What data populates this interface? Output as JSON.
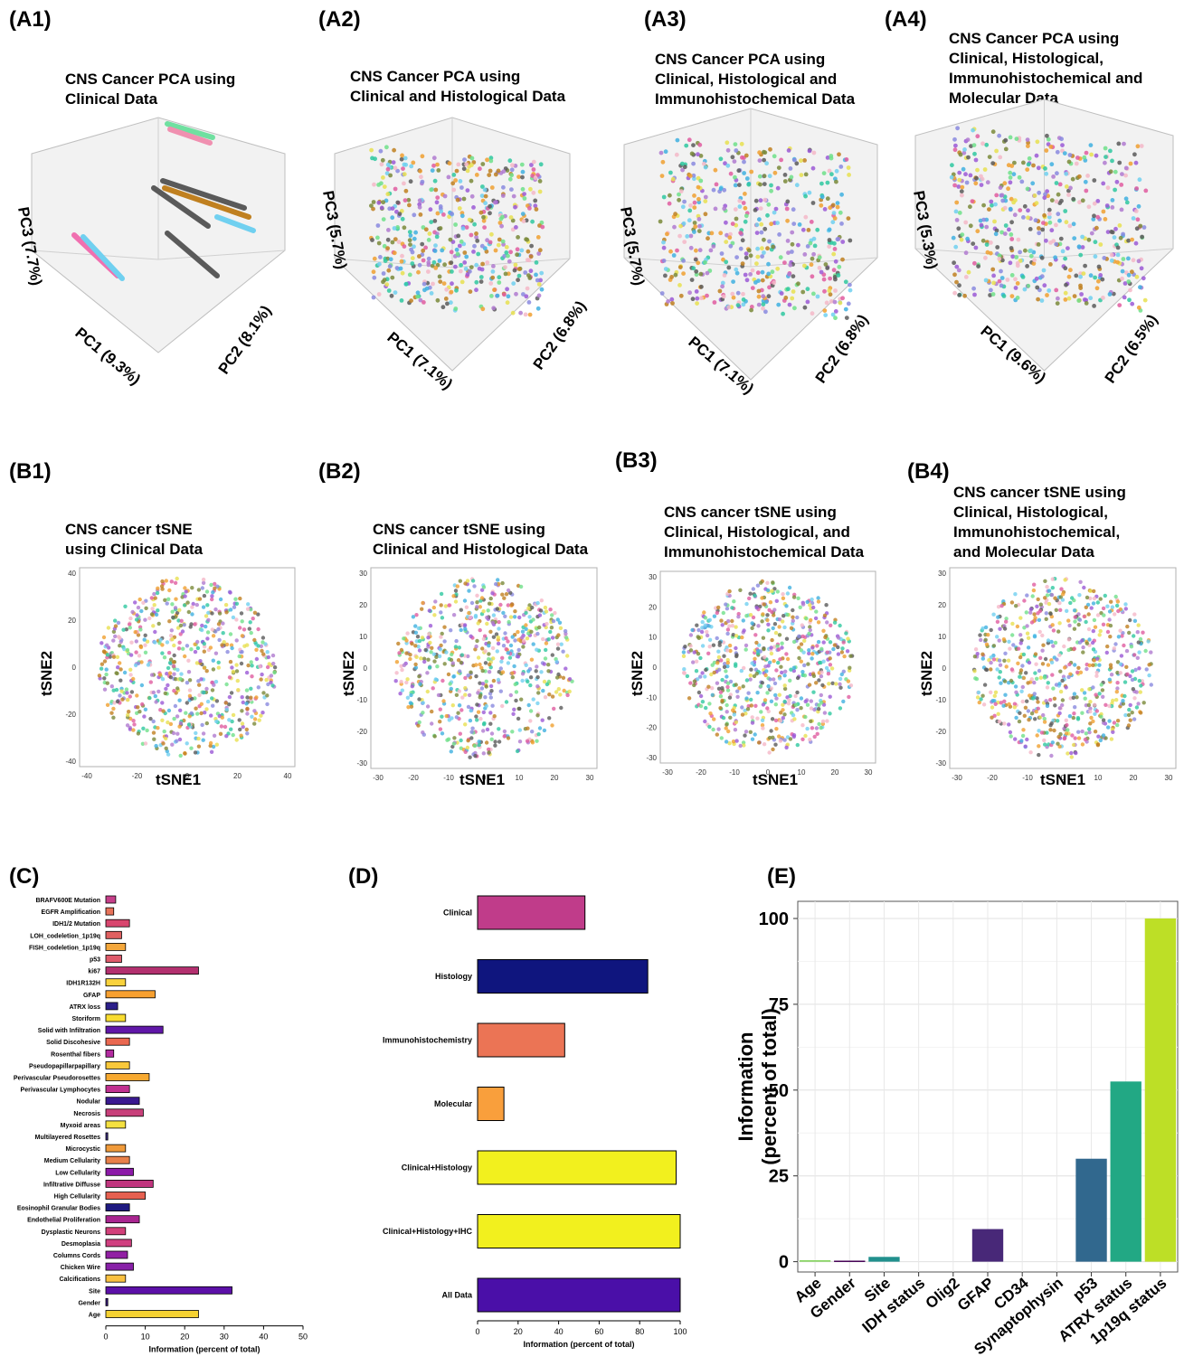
{
  "panels": {
    "A1": {
      "label": "(A1)",
      "title": [
        "CNS Cancer PCA using",
        "Clinical Data"
      ],
      "axes": [
        "PC1 (9.3%)",
        "PC2 (8.1%)",
        "PC3 (7.7%)"
      ]
    },
    "A2": {
      "label": "(A2)",
      "title": [
        "CNS Cancer PCA using",
        "Clinical and Histological Data"
      ],
      "axes": [
        "PC1 (7.1%)",
        "PC2 (6.8%)",
        "PC3 (5.7%)"
      ]
    },
    "A3": {
      "label": "(A3)",
      "title": [
        "CNS Cancer PCA using",
        "Clinical, Histological and",
        "Immunohistochemical Data"
      ],
      "axes": [
        "PC1 (7.1%)",
        "PC2 (6.8%)",
        "PC3 (5.7%)"
      ]
    },
    "A4": {
      "label": "(A4)",
      "title": [
        "CNS Cancer PCA using",
        "Clinical, Histological,",
        "Immunohistochemical and",
        "Molecular Data"
      ],
      "axes": [
        "PC1 (9.6%)",
        "PC2 (6.5%)",
        "PC3 (5.3%)"
      ]
    },
    "B1": {
      "label": "(B1)",
      "title": [
        "CNS cancer tSNE",
        "using Clinical Data"
      ],
      "xlabel": "tSNE1",
      "ylabel": "tSNE2",
      "xticks": [
        "-40",
        "-20",
        "0",
        "20",
        "40"
      ],
      "yticks": [
        "40",
        "20",
        "0",
        "-20",
        "-40"
      ]
    },
    "B2": {
      "label": "(B2)",
      "title": [
        "CNS cancer tSNE using",
        "Clinical and Histological Data"
      ],
      "xlabel": "tSNE1",
      "ylabel": "tSNE2",
      "xticks": [
        "-30",
        "-20",
        "-10",
        "0",
        "10",
        "20",
        "30"
      ],
      "yticks": [
        "30",
        "20",
        "10",
        "0",
        "-10",
        "-20",
        "-30"
      ]
    },
    "B3": {
      "label": "(B3)",
      "title": [
        "CNS cancer tSNE using",
        "Clinical, Histological, and",
        "Immunohistochemical Data"
      ],
      "xlabel": "tSNE1",
      "ylabel": "tSNE2",
      "xticks": [
        "-30",
        "-20",
        "-10",
        "0",
        "10",
        "20",
        "30"
      ],
      "yticks": [
        "30",
        "20",
        "10",
        "0",
        "-10",
        "-20",
        "-30"
      ]
    },
    "B4": {
      "label": "(B4)",
      "title": [
        "CNS cancer tSNE using",
        "Clinical, Histological,",
        "Immunohistochemical,",
        "and Molecular Data"
      ],
      "xlabel": "tSNE1",
      "ylabel": "tSNE2",
      "xticks": [
        "-30",
        "-20",
        "-10",
        "0",
        "10",
        "20",
        "30"
      ],
      "yticks": [
        "30",
        "20",
        "10",
        "0",
        "-10",
        "-20",
        "-30"
      ]
    },
    "C": {
      "label": "(C)"
    },
    "D": {
      "label": "(D)"
    },
    "E": {
      "label": "(E)"
    }
  },
  "chart_data": [
    {
      "panel": "C",
      "type": "bar",
      "orientation": "horizontal",
      "xlabel": "Information (percent of total)",
      "xlim": [
        0,
        50
      ],
      "xticks": [
        0,
        10,
        20,
        30,
        40,
        50
      ],
      "categories": [
        "BRAFV600E Mutation",
        "EGFR Amplification",
        "IDH1/2 Mutation",
        "LOH_codeletion_1p19q",
        "FISH_codeletion_1p19q",
        "p53",
        "ki67",
        "IDH1R132H",
        "GFAP",
        "ATRX loss",
        "Storiform",
        "Solid with Infiltration",
        "Solid Discohesive",
        "Rosenthal fibers",
        "Pseudopapillarpapillary",
        "Perivascular Pseudorosettes",
        "Perivascular Lymphocytes",
        "Nodular",
        "Necrosis",
        "Myxoid areas",
        "Multilayered Rosettes",
        "Microcystic",
        "Medium Cellularity",
        "Low Cellularity",
        "Infiltrative Diffusse",
        "High Cellularity",
        "Eosinophil Granular Bodies",
        "Endothelial Proliferation",
        "Dysplastic Neurons",
        "Desmoplasia",
        "Columns Cords",
        "Chicken Wire",
        "Calcifications",
        "Site",
        "Gender",
        "Age"
      ],
      "values": [
        2.5,
        2,
        6,
        4,
        5,
        4,
        23.5,
        5,
        12.5,
        3,
        5,
        14.5,
        6,
        2,
        6,
        11,
        6,
        8.5,
        9.5,
        5,
        0.5,
        5,
        6,
        7,
        12,
        10,
        6,
        8.5,
        5,
        6.5,
        5.5,
        7,
        5,
        32,
        0.5,
        23.5
      ],
      "colors": [
        "#c63f8a",
        "#e8735a",
        "#d8466e",
        "#e06060",
        "#f4a73b",
        "#de5a6a",
        "#b3306f",
        "#f9d23c",
        "#f7a030",
        "#2c1f8a",
        "#f8dc30",
        "#6017a8",
        "#ea6850",
        "#b32ba0",
        "#f9c83a",
        "#f7a930",
        "#c03090",
        "#3a1990",
        "#c8407a",
        "#f4e040",
        "#3b2a80",
        "#f09a3a",
        "#e8804a",
        "#8c1aa8",
        "#c0357e",
        "#e66050",
        "#1f1a80",
        "#a92590",
        "#d2407a",
        "#d04080",
        "#9220a4",
        "#8820a8",
        "#f9c040",
        "#5c10a8",
        "#3a1a80",
        "#f6d232"
      ]
    },
    {
      "panel": "D",
      "type": "bar",
      "orientation": "horizontal",
      "xlabel": "Information (percent of total)",
      "xlim": [
        0,
        100
      ],
      "xticks": [
        0,
        20,
        40,
        60,
        80,
        100
      ],
      "categories": [
        "Clinical",
        "Histology",
        "Immunohistochemistry",
        "Molecular",
        "Clinical+Histology",
        "Clinical+Histology+IHC",
        "All Data"
      ],
      "values": [
        53,
        84,
        43,
        13,
        98,
        100,
        100
      ],
      "colors": [
        "#c03c8a",
        "#0f157e",
        "#eb7455",
        "#f99f3c",
        "#f2f01e",
        "#f2f01e",
        "#4a0fa8"
      ]
    },
    {
      "panel": "E",
      "type": "bar",
      "orientation": "vertical",
      "ylabel": "Information\n(percent of total)",
      "ylim": [
        -3,
        105
      ],
      "yticks": [
        0,
        25,
        50,
        75,
        100
      ],
      "categories": [
        "Age",
        "Gender",
        "Site",
        "IDH status",
        "Olig2",
        "GFAP",
        "CD34",
        "Synaptophysin",
        "p53",
        "ATRX status",
        "1p19q status"
      ],
      "values": [
        0.4,
        0.3,
        1.4,
        0,
        0,
        9.5,
        0,
        0,
        30,
        52.5,
        100
      ],
      "colors": [
        "#7ad151",
        "#440154",
        "#21908d",
        "#3e4989",
        "#2c728e",
        "#482878",
        "#31688e",
        "#35b779",
        "#31688e",
        "#22a884",
        "#bddf26"
      ]
    }
  ]
}
